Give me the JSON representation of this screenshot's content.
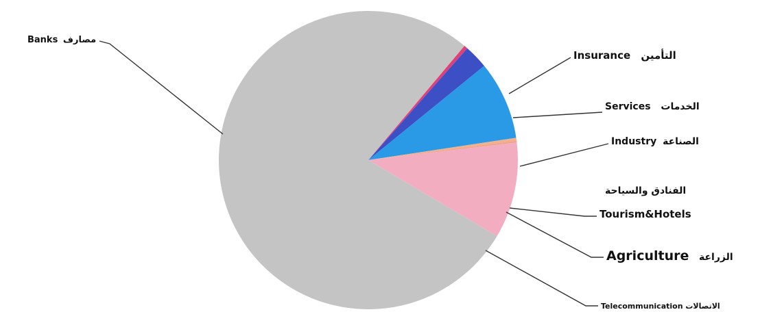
{
  "chart_data": {
    "type": "pie",
    "title": "",
    "slices": [
      {
        "label_ar": "مصارف",
        "label_en": "Banks",
        "value": 77.6,
        "color": "#c4c4c4"
      },
      {
        "label_ar": "التأمين",
        "label_en": "Insurance",
        "value": 0.4,
        "color": "#e0407a"
      },
      {
        "label_ar": "الخدمات",
        "label_en": "Services",
        "value": 2.6,
        "color": "#3d4fc4"
      },
      {
        "label_ar": "الصناعة",
        "label_en": "Industry",
        "value": 8.5,
        "color": "#2a9ae6"
      },
      {
        "label_ar": "الفنادق والسياحة",
        "label_en": "Tourism&Hotels",
        "value": 0.3,
        "color": "#f2b08c"
      },
      {
        "label_ar": "الزراعة",
        "label_en": "Agriculture",
        "value": 0.2,
        "color": "#f0a48c"
      },
      {
        "label_ar": "الاتصالات",
        "label_en": "Telecommunication",
        "value": 10.4,
        "color": "#f2aec0"
      }
    ],
    "legend": "none"
  }
}
